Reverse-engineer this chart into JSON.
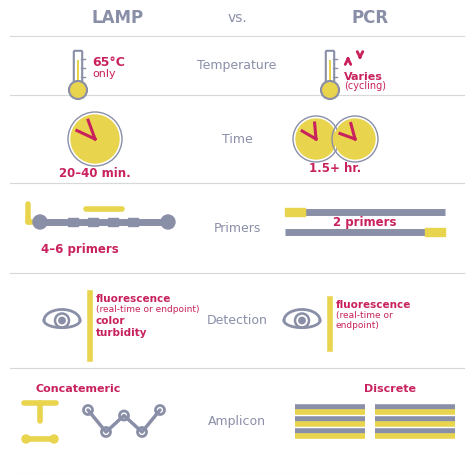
{
  "bg_color": "#ffffff",
  "header_color": "#8a8fa8",
  "pink_color": "#c8215d",
  "yellow_color": "#e8d44d",
  "gray_color": "#8a8fa8",
  "title_lamp": "LAMP",
  "title_vs": "vs.",
  "title_pcr": "PCR",
  "rows": [
    "Temperature",
    "Time",
    "Primers",
    "Detection",
    "Amplicon"
  ],
  "lamp_temp_text1": "65°C",
  "lamp_temp_text2": "only",
  "pcr_temp_text1": "Varies",
  "pcr_temp_text2": "(cycling)",
  "lamp_time_text": "20–40 min.",
  "pcr_time_text": "1.5+ hr.",
  "lamp_primers_text": "4–6 primers",
  "pcr_primers_text": "2 primers",
  "lamp_det1": "fluorescence",
  "lamp_det2": "(real-time or endpoint)",
  "lamp_det3": "color",
  "lamp_det4": "turbidity",
  "pcr_det1": "fluorescence",
  "pcr_det2": "(real-time or",
  "pcr_det3": "endpoint)",
  "lamp_amplicon_text": "Concatemeric",
  "pcr_amplicon_text": "Discrete",
  "row_tops": [
    36,
    95,
    183,
    273,
    368,
    474
  ],
  "divider_color": "#d8d8d8"
}
